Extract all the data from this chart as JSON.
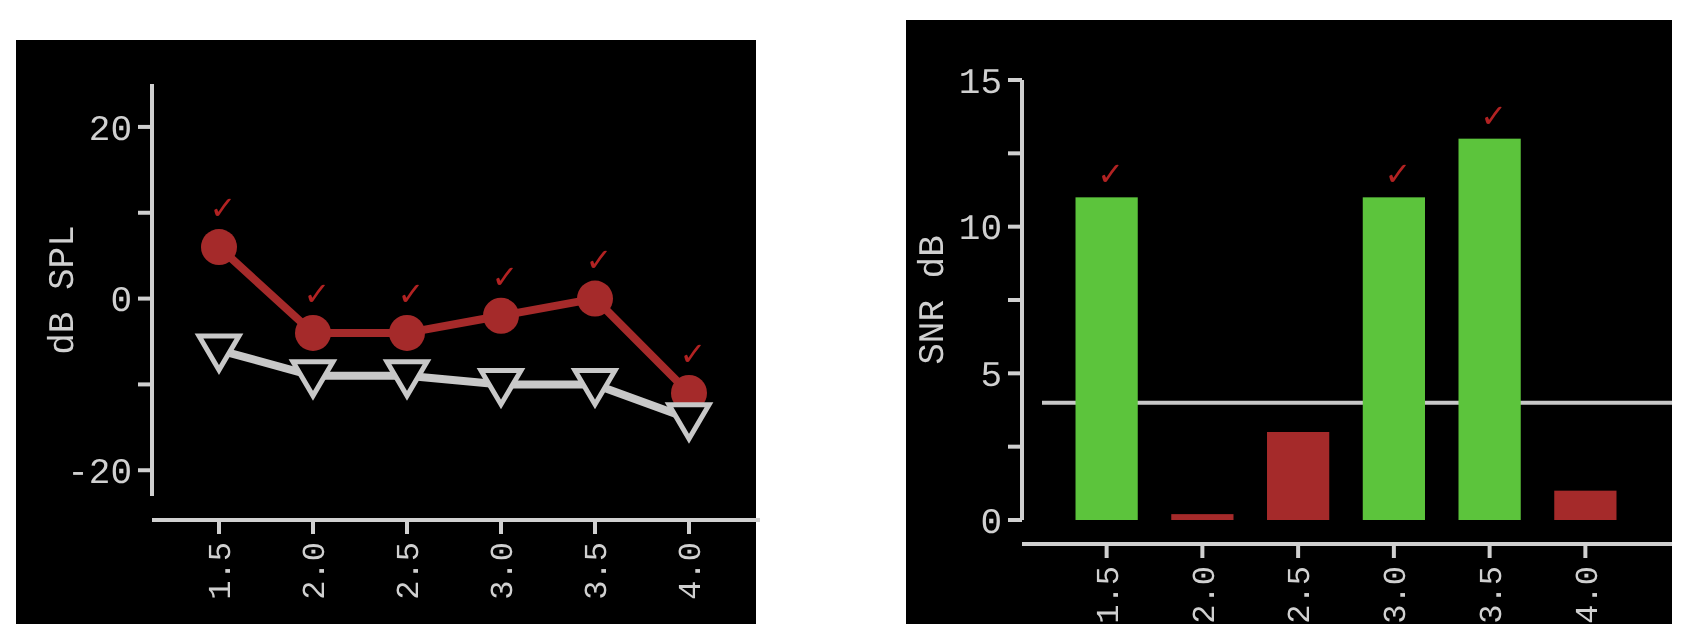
{
  "chart_data": [
    {
      "type": "line",
      "ylabel": "dB SPL",
      "categories": [
        "1.5",
        "2.0",
        "2.5",
        "3.0",
        "3.5",
        "4.0"
      ],
      "series": [
        {
          "color": "#a52a2a",
          "marker": "circle",
          "values": [
            6,
            -4,
            -4,
            -2,
            0,
            -11
          ]
        },
        {
          "color": "#c8c8c8",
          "marker": "triangle",
          "values": [
            -6,
            -9,
            -9,
            -10,
            -10,
            -14
          ]
        }
      ],
      "ylim": [
        -23,
        25
      ],
      "yticks": [
        -20,
        {
          "value": -10,
          "label": null
        },
        0,
        {
          "value": 10,
          "label": null
        },
        20
      ],
      "grid": false,
      "annotations": [
        {
          "text": "✓",
          "x": "1.5",
          "y": 6
        },
        {
          "text": "✓",
          "x": "2.0",
          "y": -4
        },
        {
          "text": "✓",
          "x": "2.5",
          "y": -4
        },
        {
          "text": "✓",
          "x": "3.0",
          "y": -2
        },
        {
          "text": "✓",
          "x": "3.5",
          "y": 0
        },
        {
          "text": "✓",
          "x": "4.0",
          "y": -11
        }
      ]
    },
    {
      "type": "bar",
      "ylabel": "SNR dB",
      "categories": [
        "1.5",
        "2.0",
        "2.5",
        "3.0",
        "3.5",
        "4.0"
      ],
      "values": [
        11,
        0.2,
        3,
        11,
        13,
        1
      ],
      "colors": [
        "#5cc43c",
        "#a52a2a",
        "#a52a2a",
        "#5cc43c",
        "#5cc43c",
        "#a52a2a"
      ],
      "ylim": [
        0,
        15
      ],
      "yticks": [
        0,
        {
          "value": 2.5,
          "label": null
        },
        5,
        {
          "value": 7.5,
          "label": null
        },
        10,
        {
          "value": 12.5,
          "label": null
        },
        15
      ],
      "grid": false,
      "ref_lines": [
        {
          "axis": "y",
          "value": 4,
          "color": "#c8c8c8"
        }
      ],
      "annotations": [
        {
          "text": "✓",
          "x": "1.5",
          "y": 11
        },
        {
          "text": "✓",
          "x": "3.0",
          "y": 11
        },
        {
          "text": "✓",
          "x": "3.5",
          "y": 13
        }
      ]
    }
  ]
}
